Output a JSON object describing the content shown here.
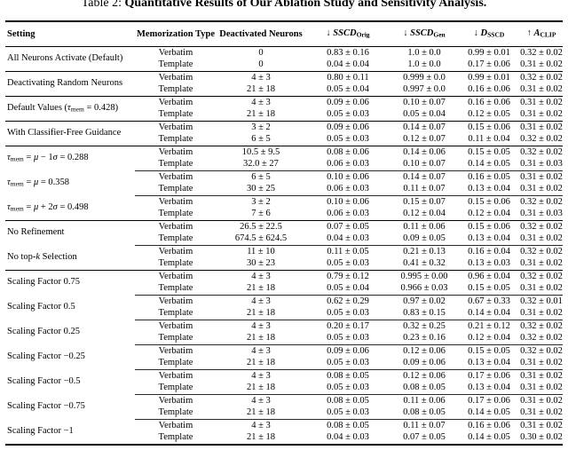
{
  "caption": {
    "prefix": "Table 2: ",
    "title": "Quantitative Results of Our Ablation Study and Sensitivity Analysis."
  },
  "colors": {
    "text": "#000000",
    "background": "#ffffff",
    "rule": "#000000"
  },
  "table": {
    "columns": [
      {
        "name": "setting",
        "segs": [
          {
            "t": "Setting",
            "b": 1
          }
        ]
      },
      {
        "name": "memorization-type",
        "segs": [
          {
            "t": "Memorization Type",
            "b": 1
          }
        ]
      },
      {
        "name": "deactivated-neurons",
        "segs": [
          {
            "t": "Deactivated Neurons",
            "b": 1
          }
        ]
      },
      {
        "name": "sscd-orig",
        "segs": [
          {
            "t": "↓ ",
            "b": 1
          },
          {
            "t": "SSCD",
            "bi": 1
          },
          {
            "t": "Orig",
            "sub": 1,
            "b": 1
          }
        ]
      },
      {
        "name": "sscd-gen",
        "segs": [
          {
            "t": "↓ ",
            "b": 1
          },
          {
            "t": "SSCD",
            "bi": 1
          },
          {
            "t": "Gen",
            "sub": 1,
            "b": 1
          }
        ]
      },
      {
        "name": "d-sscd",
        "segs": [
          {
            "t": "↓ ",
            "b": 1
          },
          {
            "t": "D",
            "bi": 1
          },
          {
            "t": "SSCD",
            "sub": 1,
            "b": 1
          }
        ]
      },
      {
        "name": "a-clip",
        "segs": [
          {
            "t": "↑ ",
            "b": 1
          },
          {
            "t": "A",
            "bi": 1
          },
          {
            "t": "CLIP",
            "sub": 1,
            "b": 1
          }
        ]
      }
    ],
    "groups": [
      {
        "setting": [
          {
            "t": "All Neurons Activate (Default)"
          }
        ],
        "sep": "full",
        "rows": [
          [
            "Verbatim",
            "0",
            "0.83 ± 0.16",
            "1.0 ± 0.0",
            "0.99 ± 0.01",
            "0.32 ± 0.02"
          ],
          [
            "Template",
            "0",
            "0.04 ± 0.04",
            "1.0 ± 0.0",
            "0.17 ± 0.06",
            "0.31 ± 0.02"
          ]
        ]
      },
      {
        "setting": [
          {
            "t": "Deactivating Random Neurons"
          }
        ],
        "sep": "full",
        "rows": [
          [
            "Verbatim",
            "4 ± 3",
            "0.80 ± 0.11",
            "0.999 ± 0.0",
            "0.99 ± 0.01",
            "0.32 ± 0.02"
          ],
          [
            "Template",
            "21 ± 18",
            "0.05 ± 0.04",
            "0.997 ± 0.0",
            "0.16 ± 0.06",
            "0.31 ± 0.02"
          ]
        ]
      },
      {
        "setting": [
          {
            "t": "Default Values ("
          },
          {
            "t": "τ",
            "i": 1
          },
          {
            "t": "mem",
            "sub": 1
          },
          {
            "t": " = 0.428)"
          }
        ],
        "sep": "full",
        "rows": [
          [
            "Verbatim",
            "4 ± 3",
            "0.09 ± 0.06",
            "0.10 ± 0.07",
            "0.16 ± 0.06",
            "0.31 ± 0.02"
          ],
          [
            "Template",
            "21 ± 18",
            "0.05 ± 0.03",
            "0.05 ± 0.04",
            "0.12 ± 0.05",
            "0.31 ± 0.02"
          ]
        ]
      },
      {
        "setting": [
          {
            "t": "With Classifier-Free Guidance"
          }
        ],
        "sep": "full",
        "rows": [
          [
            "Verbatim",
            "3 ± 2",
            "0.09 ± 0.06",
            "0.14 ± 0.07",
            "0.15 ± 0.06",
            "0.31 ± 0.02"
          ],
          [
            "Template",
            "6 ± 5",
            "0.05 ± 0.03",
            "0.12 ± 0.07",
            "0.11 ± 0.04",
            "0.32 ± 0.02"
          ]
        ]
      },
      {
        "setting": [
          {
            "t": "τ",
            "i": 1
          },
          {
            "t": "mem",
            "sub": 1
          },
          {
            "t": " = "
          },
          {
            "t": "μ",
            "i": 1
          },
          {
            "t": " − 1"
          },
          {
            "t": "σ",
            "i": 1
          },
          {
            "t": " = 0.288"
          }
        ],
        "sep": "partial",
        "rows": [
          [
            "Verbatim",
            "10.5 ± 9.5",
            "0.08 ± 0.06",
            "0.14 ± 0.06",
            "0.15 ± 0.05",
            "0.32 ± 0.02"
          ],
          [
            "Template",
            "32.0 ± 27",
            "0.06 ± 0.03",
            "0.10 ± 0.07",
            "0.14 ± 0.05",
            "0.31 ± 0.03"
          ]
        ]
      },
      {
        "setting": [
          {
            "t": "τ",
            "i": 1
          },
          {
            "t": "mem",
            "sub": 1
          },
          {
            "t": " = "
          },
          {
            "t": "μ",
            "i": 1
          },
          {
            "t": " = 0.358"
          }
        ],
        "sep": "partial",
        "rows": [
          [
            "Verbatim",
            "6 ± 5",
            "0.10 ± 0.06",
            "0.14 ± 0.07",
            "0.16 ± 0.05",
            "0.31 ± 0.02"
          ],
          [
            "Template",
            "30 ± 25",
            "0.06 ± 0.03",
            "0.11 ± 0.07",
            "0.13 ± 0.04",
            "0.31 ± 0.02"
          ]
        ]
      },
      {
        "setting": [
          {
            "t": "τ",
            "i": 1
          },
          {
            "t": "mem",
            "sub": 1
          },
          {
            "t": " = "
          },
          {
            "t": "μ",
            "i": 1
          },
          {
            "t": " + 2"
          },
          {
            "t": "σ",
            "i": 1
          },
          {
            "t": " = 0.498"
          }
        ],
        "sep": "full",
        "rows": [
          [
            "Verbatim",
            "3 ± 2",
            "0.10 ± 0.06",
            "0.15 ± 0.07",
            "0.15 ± 0.06",
            "0.32 ± 0.02"
          ],
          [
            "Template",
            "7 ± 6",
            "0.06 ± 0.03",
            "0.12 ± 0.04",
            "0.12 ± 0.04",
            "0.31 ± 0.03"
          ]
        ]
      },
      {
        "setting": [
          {
            "t": "No Refinement"
          }
        ],
        "sep": "partial",
        "rows": [
          [
            "Verbatim",
            "26.5 ± 22.5",
            "0.07 ± 0.05",
            "0.11 ± 0.06",
            "0.15 ± 0.06",
            "0.32 ± 0.02"
          ],
          [
            "Template",
            "674.5 ± 624.5",
            "0.04 ± 0.03",
            "0.09 ± 0.05",
            "0.13 ± 0.04",
            "0.31 ± 0.02"
          ]
        ]
      },
      {
        "setting": [
          {
            "t": "No top-"
          },
          {
            "t": "k",
            "i": 1
          },
          {
            "t": " Selection"
          }
        ],
        "sep": "full",
        "rows": [
          [
            "Verbatim",
            "11 ± 10",
            "0.11 ± 0.05",
            "0.21 ± 0.13",
            "0.16 ± 0.04",
            "0.32 ± 0.02"
          ],
          [
            "Template",
            "30 ± 23",
            "0.05 ± 0.03",
            "0.41 ± 0.32",
            "0.13 ± 0.03",
            "0.31 ± 0.02"
          ]
        ]
      },
      {
        "setting": [
          {
            "t": "Scaling Factor 0.75"
          }
        ],
        "sep": "partial",
        "rows": [
          [
            "Verbatim",
            "4 ± 3",
            "0.79 ± 0.12",
            "0.995 ± 0.00",
            "0.96 ± 0.04",
            "0.32 ± 0.02"
          ],
          [
            "Template",
            "21 ± 18",
            "0.05 ± 0.04",
            "0.966 ± 0.03",
            "0.15 ± 0.05",
            "0.31 ± 0.02"
          ]
        ]
      },
      {
        "setting": [
          {
            "t": "Scaling Factor 0.5"
          }
        ],
        "sep": "partial",
        "rows": [
          [
            "Verbatim",
            "4 ± 3",
            "0.62 ± 0.29",
            "0.97 ± 0.02",
            "0.67 ± 0.33",
            "0.32 ± 0.01"
          ],
          [
            "Template",
            "21 ± 18",
            "0.05 ± 0.03",
            "0.83 ± 0.15",
            "0.14 ± 0.04",
            "0.31 ± 0.02"
          ]
        ]
      },
      {
        "setting": [
          {
            "t": "Scaling Factor 0.25"
          }
        ],
        "sep": "partial",
        "rows": [
          [
            "Verbatim",
            "4 ± 3",
            "0.20 ± 0.17",
            "0.32 ± 0.25",
            "0.21 ± 0.12",
            "0.32 ± 0.02"
          ],
          [
            "Template",
            "21 ± 18",
            "0.05 ± 0.03",
            "0.23 ± 0.16",
            "0.12 ± 0.04",
            "0.32 ± 0.02"
          ]
        ]
      },
      {
        "setting": [
          {
            "t": "Scaling Factor −0.25"
          }
        ],
        "sep": "partial",
        "rows": [
          [
            "Verbatim",
            "4 ± 3",
            "0.09 ± 0.06",
            "0.12 ± 0.06",
            "0.15 ± 0.05",
            "0.32 ± 0.02"
          ],
          [
            "Template",
            "21 ± 18",
            "0.05 ± 0.03",
            "0.09 ± 0.06",
            "0.13 ± 0.04",
            "0.31 ± 0.02"
          ]
        ]
      },
      {
        "setting": [
          {
            "t": "Scaling Factor −0.5"
          }
        ],
        "sep": "partial",
        "rows": [
          [
            "Verbatim",
            "4 ± 3",
            "0.08 ± 0.05",
            "0.12 ± 0.06",
            "0.17 ± 0.06",
            "0.31 ± 0.02"
          ],
          [
            "Template",
            "21 ± 18",
            "0.05 ± 0.03",
            "0.08 ± 0.05",
            "0.13 ± 0.04",
            "0.31 ± 0.02"
          ]
        ]
      },
      {
        "setting": [
          {
            "t": "Scaling Factor −0.75"
          }
        ],
        "sep": "partial",
        "rows": [
          [
            "Verbatim",
            "4 ± 3",
            "0.08 ± 0.05",
            "0.11 ± 0.06",
            "0.17 ± 0.06",
            "0.31 ± 0.02"
          ],
          [
            "Template",
            "21 ± 18",
            "0.05 ± 0.03",
            "0.08 ± 0.05",
            "0.14 ± 0.05",
            "0.31 ± 0.02"
          ]
        ]
      },
      {
        "setting": [
          {
            "t": "Scaling Factor −1"
          }
        ],
        "sep": "none",
        "rows": [
          [
            "Verbatim",
            "4 ± 3",
            "0.08 ± 0.05",
            "0.11 ± 0.07",
            "0.16 ± 0.06",
            "0.31 ± 0.02"
          ],
          [
            "Template",
            "21 ± 18",
            "0.04 ± 0.03",
            "0.07 ± 0.05",
            "0.14 ± 0.05",
            "0.30 ± 0.02"
          ]
        ]
      }
    ]
  }
}
